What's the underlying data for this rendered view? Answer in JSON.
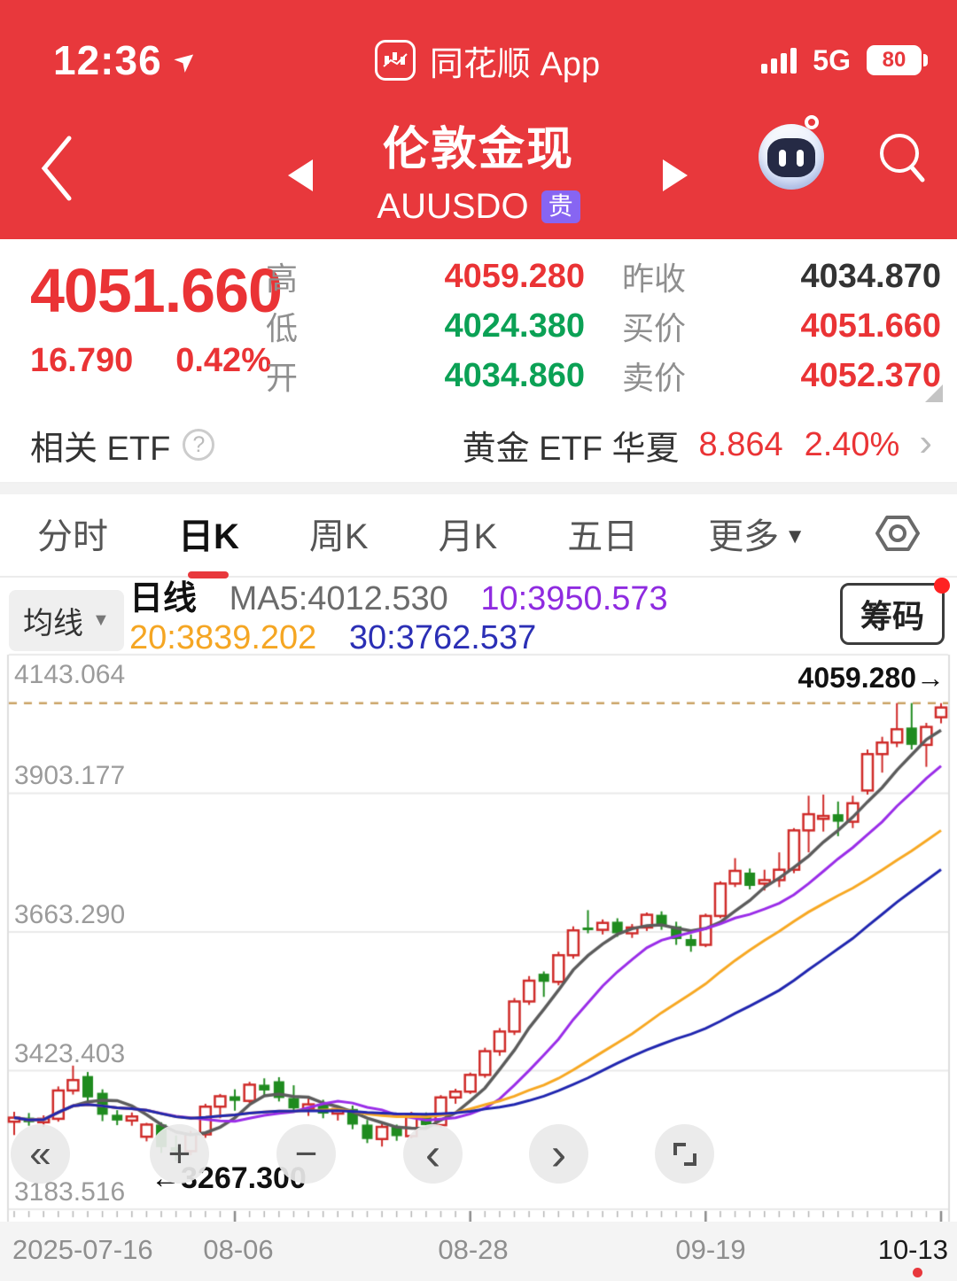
{
  "status_bar": {
    "time": "12:36",
    "app_name": "同花顺 App",
    "network": "5G",
    "battery_pct": "80"
  },
  "nav": {
    "title": "伦敦金现",
    "symbol": "AUUSDO",
    "tag": "贵"
  },
  "quote": {
    "price": "4051.660",
    "change": "16.790",
    "change_pct": "0.42%",
    "rows": [
      {
        "label": "高",
        "value": "4059.280"
      },
      {
        "label": "昨收",
        "value": "4034.870"
      },
      {
        "label": "低",
        "value": "4024.380"
      },
      {
        "label": "买价",
        "value": "4051.660"
      },
      {
        "label": "开",
        "value": "4034.860"
      },
      {
        "label": "卖价",
        "value": "4052.370"
      }
    ]
  },
  "etf": {
    "label": "相关 ETF",
    "help": "?",
    "name": "黄金 ETF 华夏",
    "price": "8.864",
    "change_pct": "2.40%",
    "chevron": "›"
  },
  "tabs": {
    "items": [
      "分时",
      "日K",
      "周K",
      "月K",
      "五日"
    ],
    "active": "日K",
    "more_label": "更多",
    "more_caret": "▼"
  },
  "legend": {
    "selector_label": "均线",
    "selector_caret": "▼",
    "period_label": "日线",
    "ma5": "MA5:4012.530",
    "ma10": "10:3950.573",
    "ma20": "20:3839.202",
    "ma30": "30:3762.537",
    "chips_label": "筹码"
  },
  "toolbar": {
    "buttons": [
      {
        "name": "rewind",
        "glyph": "«"
      },
      {
        "name": "zoom-in",
        "glyph": "+"
      },
      {
        "name": "zoom-out",
        "glyph": "−"
      },
      {
        "name": "prev",
        "glyph": "‹"
      },
      {
        "name": "next",
        "glyph": "›"
      },
      {
        "name": "fullscreen",
        "glyph": ""
      }
    ]
  },
  "chart_data": {
    "type": "candlestick",
    "title": "伦敦金现 AUUSDO 日K",
    "interval": "日K",
    "grid": true,
    "y_ticks": [
      4143.064,
      3903.177,
      3663.29,
      3423.403,
      3183.516
    ],
    "y_axis_labels": [
      "4143.064",
      "3903.177",
      "3663.290",
      "3423.403",
      "3183.516"
    ],
    "x_axis_labels": [
      "2025-07-16",
      "08-06",
      "08-28",
      "09-19",
      "10-13"
    ],
    "x_label_candle_indices": [
      0,
      15,
      31,
      47,
      63
    ],
    "high_marker": {
      "label": "4059.280→",
      "value": 4059.28
    },
    "low_marker": {
      "label": "←3267.300",
      "value": 3267.3
    },
    "up_color": "#cf2a28",
    "down_color": "#1f8b1f",
    "dashed_line_color": "#c9a265",
    "ma_lines": [
      {
        "name": "MA5",
        "period": 5,
        "color": "#5c5c5c",
        "value": "4012.530"
      },
      {
        "name": "MA10",
        "period": 10,
        "color": "#9a2de8",
        "value": "3950.573"
      },
      {
        "name": "MA20",
        "period": 20,
        "color": "#f7a823",
        "value": "3839.202"
      },
      {
        "name": "MA30",
        "period": 30,
        "color": "#2026af",
        "value": "3762.537"
      }
    ],
    "ohlc_format": [
      "open",
      "high",
      "low",
      "close"
    ],
    "candles": [
      [
        3335,
        3352,
        3312,
        3342
      ],
      [
        3342,
        3350,
        3328,
        3334
      ],
      [
        3334,
        3346,
        3326,
        3340
      ],
      [
        3340,
        3396,
        3335,
        3389
      ],
      [
        3389,
        3432,
        3382,
        3407
      ],
      [
        3414,
        3421,
        3370,
        3377
      ],
      [
        3385,
        3391,
        3336,
        3347
      ],
      [
        3347,
        3355,
        3329,
        3337
      ],
      [
        3337,
        3351,
        3328,
        3344
      ],
      [
        3309,
        3333,
        3301,
        3330
      ],
      [
        3330,
        3334,
        3281,
        3291
      ],
      [
        3291,
        3311,
        3267.3,
        3284
      ],
      [
        3284,
        3319,
        3277,
        3313
      ],
      [
        3313,
        3366,
        3307,
        3361
      ],
      [
        3361,
        3383,
        3341,
        3379
      ],
      [
        3379,
        3391,
        3354,
        3371
      ],
      [
        3371,
        3404,
        3367,
        3399
      ],
      [
        3399,
        3410,
        3381,
        3389
      ],
      [
        3405,
        3412,
        3370,
        3376
      ],
      [
        3376,
        3398,
        3352,
        3358
      ],
      [
        3358,
        3375,
        3345,
        3365
      ],
      [
        3365,
        3373,
        3341,
        3349
      ],
      [
        3349,
        3362,
        3337,
        3357
      ],
      [
        3357,
        3363,
        3322,
        3330
      ],
      [
        3330,
        3338,
        3298,
        3305
      ],
      [
        3305,
        3332,
        3292,
        3326
      ],
      [
        3326,
        3330,
        3302,
        3310
      ],
      [
        3310,
        3352,
        3306,
        3347
      ],
      [
        3347,
        3351,
        3322,
        3329
      ],
      [
        3329,
        3381,
        3325,
        3377
      ],
      [
        3377,
        3392,
        3366,
        3387
      ],
      [
        3387,
        3420,
        3383,
        3416
      ],
      [
        3416,
        3463,
        3411,
        3457
      ],
      [
        3457,
        3497,
        3449,
        3491
      ],
      [
        3491,
        3549,
        3485,
        3543
      ],
      [
        3543,
        3587,
        3537,
        3579
      ],
      [
        3591,
        3595,
        3551,
        3577
      ],
      [
        3577,
        3629,
        3571,
        3623
      ],
      [
        3623,
        3673,
        3617,
        3666
      ],
      [
        3671,
        3701,
        3661,
        3667
      ],
      [
        3667,
        3685,
        3659,
        3679
      ],
      [
        3681,
        3687,
        3655,
        3661
      ],
      [
        3661,
        3677,
        3653,
        3671
      ],
      [
        3671,
        3697,
        3665,
        3693
      ],
      [
        3693,
        3699,
        3667,
        3673
      ],
      [
        3673,
        3681,
        3641,
        3651
      ],
      [
        3651,
        3659,
        3629,
        3639
      ],
      [
        3641,
        3695,
        3637,
        3691
      ],
      [
        3691,
        3751,
        3687,
        3747
      ],
      [
        3747,
        3791,
        3741,
        3769
      ],
      [
        3766,
        3773,
        3737,
        3743
      ],
      [
        3747,
        3771,
        3735,
        3753
      ],
      [
        3753,
        3801,
        3741,
        3771
      ],
      [
        3771,
        3843,
        3765,
        3839
      ],
      [
        3839,
        3899,
        3801,
        3867
      ],
      [
        3859,
        3901,
        3837,
        3864
      ],
      [
        3867,
        3889,
        3829,
        3854
      ],
      [
        3854,
        3899,
        3843,
        3886
      ],
      [
        3908,
        3979,
        3901,
        3971
      ],
      [
        3971,
        4001,
        3939,
        3991
      ],
      [
        3991,
        4059.3,
        3983,
        4014
      ],
      [
        4017,
        4059.3,
        3979,
        3987
      ],
      [
        3987,
        4025,
        3949,
        4018
      ],
      [
        4034.86,
        4059.28,
        4024.38,
        4051.66
      ]
    ]
  }
}
